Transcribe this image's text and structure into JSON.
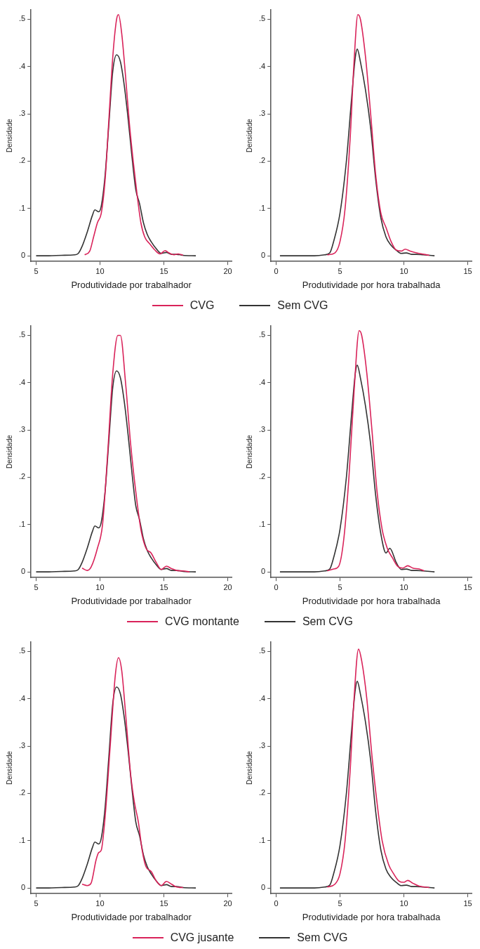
{
  "chart_data": [
    {
      "type": "line",
      "xlabel": "Produtividade por trabalhador",
      "ylabel": "Densidade",
      "xlim": [
        4.6,
        20.3
      ],
      "xticks": [
        5,
        10,
        15,
        20
      ],
      "ylim": [
        -0.012,
        0.52
      ],
      "yticks": [
        {
          "value": 0,
          "label": "0"
        },
        {
          "value": 0.1,
          "label": ".1"
        },
        {
          "value": 0.2,
          "label": ".2"
        },
        {
          "value": 0.3,
          "label": ".3"
        },
        {
          "value": 0.4,
          "label": ".4"
        },
        {
          "value": 0.5,
          "label": ".5"
        }
      ],
      "grid": false,
      "legend": "bottom",
      "series": [
        {
          "name": "CVG",
          "color": "#d9235a",
          "x": [
            8.8,
            9.2,
            9.5,
            9.8,
            10.1,
            10.4,
            10.7,
            11.0,
            11.3,
            11.45,
            11.7,
            12.0,
            12.3,
            12.6,
            12.9,
            13.2,
            13.5,
            13.9,
            14.3,
            14.7,
            15.1,
            15.4,
            15.8,
            16.1,
            16.5
          ],
          "values": [
            0.002,
            0.01,
            0.04,
            0.07,
            0.09,
            0.16,
            0.29,
            0.42,
            0.5,
            0.51,
            0.47,
            0.38,
            0.28,
            0.2,
            0.13,
            0.07,
            0.04,
            0.025,
            0.012,
            0.004,
            0.011,
            0.006,
            0.002,
            0.004,
            0.001
          ]
        },
        {
          "name": "Sem CVG",
          "color": "#333333",
          "x": [
            5,
            6,
            7,
            8,
            8.3,
            8.6,
            9,
            9.4,
            9.6,
            9.9,
            10.1,
            10.4,
            10.7,
            11.0,
            11.3,
            11.6,
            11.9,
            12.2,
            12.5,
            12.8,
            13.1,
            13.4,
            13.7,
            14.0,
            14.4,
            14.8,
            15.2,
            15.6,
            16.0,
            16.5,
            17.5
          ],
          "values": [
            0,
            0,
            0.001,
            0.002,
            0.005,
            0.02,
            0.05,
            0.085,
            0.097,
            0.093,
            0.105,
            0.17,
            0.28,
            0.39,
            0.425,
            0.41,
            0.36,
            0.29,
            0.21,
            0.14,
            0.11,
            0.07,
            0.045,
            0.03,
            0.015,
            0.005,
            0.007,
            0.003,
            0.003,
            0.001,
            0
          ]
        }
      ]
    },
    {
      "type": "line",
      "xlabel": "Produtividade por hora trabalhada",
      "ylabel": "Densidade",
      "xlim": [
        -0.4,
        15.3
      ],
      "xticks": [
        0,
        5,
        10,
        15
      ],
      "ylim": [
        -0.012,
        0.52
      ],
      "yticks": [
        {
          "value": 0,
          "label": "0"
        },
        {
          "value": 0.1,
          "label": ".1"
        },
        {
          "value": 0.2,
          "label": ".2"
        },
        {
          "value": 0.3,
          "label": ".3"
        },
        {
          "value": 0.4,
          "label": ".4"
        },
        {
          "value": 0.5,
          "label": ".5"
        }
      ],
      "grid": false,
      "series": [
        {
          "color": "#d9235a",
          "x": [
            4.0,
            4.6,
            5.0,
            5.4,
            5.8,
            6.1,
            6.4,
            6.6,
            7.0,
            7.4,
            7.8,
            8.2,
            8.6,
            9.0,
            9.4,
            9.8,
            10.1,
            10.5,
            11.0,
            11.4,
            12.0
          ],
          "values": [
            0.002,
            0.006,
            0.03,
            0.1,
            0.25,
            0.41,
            0.51,
            0.5,
            0.42,
            0.3,
            0.17,
            0.09,
            0.06,
            0.03,
            0.012,
            0.01,
            0.014,
            0.01,
            0.006,
            0.004,
            0.001
          ]
        },
        {
          "color": "#333333",
          "x": [
            0.3,
            3,
            3.8,
            4.2,
            4.5,
            5.0,
            5.5,
            5.9,
            6.2,
            6.35,
            6.6,
            7.0,
            7.4,
            7.8,
            8.2,
            8.6,
            9.0,
            9.4,
            9.8,
            10.2,
            10.6,
            11.0,
            11.5,
            12.4
          ],
          "values": [
            0,
            0,
            0.002,
            0.006,
            0.03,
            0.09,
            0.2,
            0.33,
            0.42,
            0.437,
            0.41,
            0.35,
            0.27,
            0.16,
            0.08,
            0.04,
            0.022,
            0.012,
            0.005,
            0.006,
            0.003,
            0.003,
            0.002,
            0
          ]
        }
      ]
    },
    {
      "type": "line",
      "xlabel": "Produtividade por trabalhador",
      "ylabel": "Densidade",
      "xlim": [
        4.6,
        20.3
      ],
      "xticks": [
        5,
        10,
        15,
        20
      ],
      "ylim": [
        -0.012,
        0.52
      ],
      "yticks": [
        {
          "value": 0,
          "label": "0"
        },
        {
          "value": 0.1,
          "label": ".1"
        },
        {
          "value": 0.2,
          "label": ".2"
        },
        {
          "value": 0.3,
          "label": ".3"
        },
        {
          "value": 0.4,
          "label": ".4"
        },
        {
          "value": 0.5,
          "label": ".5"
        }
      ],
      "grid": false,
      "legend": "bottom",
      "series": [
        {
          "name": "CVG montante",
          "color": "#d9235a",
          "x": [
            8.6,
            9.0,
            9.3,
            9.8,
            10.2,
            10.6,
            11.0,
            11.4,
            11.6,
            12.0,
            12.4,
            12.8,
            13.2,
            13.6,
            14.0,
            14.4,
            14.8,
            15.2,
            15.6,
            16.0,
            16.5,
            17.0
          ],
          "values": [
            0.008,
            0.003,
            0.01,
            0.05,
            0.1,
            0.25,
            0.42,
            0.5,
            0.5,
            0.4,
            0.27,
            0.17,
            0.09,
            0.05,
            0.04,
            0.02,
            0.005,
            0.012,
            0.007,
            0.003,
            0.002,
            0
          ]
        },
        {
          "name": "Sem CVG",
          "color": "#333333",
          "x": [
            5,
            6,
            7,
            8,
            8.3,
            8.6,
            9,
            9.4,
            9.6,
            9.9,
            10.1,
            10.4,
            10.7,
            11.0,
            11.3,
            11.6,
            11.9,
            12.2,
            12.5,
            12.8,
            13.1,
            13.4,
            13.7,
            14.0,
            14.4,
            14.8,
            15.2,
            15.6,
            16.0,
            16.5,
            17.5
          ],
          "values": [
            0,
            0,
            0.001,
            0.002,
            0.005,
            0.02,
            0.05,
            0.085,
            0.097,
            0.093,
            0.105,
            0.17,
            0.28,
            0.39,
            0.425,
            0.41,
            0.36,
            0.29,
            0.21,
            0.14,
            0.11,
            0.07,
            0.045,
            0.03,
            0.015,
            0.005,
            0.007,
            0.003,
            0.003,
            0.001,
            0
          ]
        }
      ]
    },
    {
      "type": "line",
      "xlabel": "Produtividade por hora trabalhada",
      "ylabel": "Densidade",
      "xlim": [
        -0.4,
        15.3
      ],
      "xticks": [
        0,
        5,
        10,
        15
      ],
      "ylim": [
        -0.012,
        0.52
      ],
      "yticks": [
        {
          "value": 0,
          "label": "0"
        },
        {
          "value": 0.1,
          "label": ".1"
        },
        {
          "value": 0.2,
          "label": ".2"
        },
        {
          "value": 0.3,
          "label": ".3"
        },
        {
          "value": 0.4,
          "label": ".4"
        },
        {
          "value": 0.5,
          "label": ".5"
        }
      ],
      "grid": false,
      "series": [
        {
          "color": "#d9235a",
          "x": [
            4.0,
            4.5,
            4.9,
            5.3,
            5.7,
            6.1,
            6.5,
            6.7,
            7.1,
            7.5,
            7.9,
            8.3,
            8.7,
            9.1,
            9.5,
            9.9,
            10.3,
            10.7,
            11.2,
            11.6
          ],
          "values": [
            0.002,
            0.006,
            0.012,
            0.07,
            0.2,
            0.38,
            0.51,
            0.5,
            0.42,
            0.3,
            0.17,
            0.09,
            0.05,
            0.03,
            0.012,
            0.008,
            0.013,
            0.008,
            0.006,
            0.002
          ]
        },
        {
          "color": "#333333",
          "x": [
            0.3,
            3,
            3.8,
            4.2,
            4.5,
            5.0,
            5.5,
            5.9,
            6.2,
            6.35,
            6.6,
            7.0,
            7.4,
            7.8,
            8.2,
            8.6,
            8.9,
            9.4,
            9.8,
            10.2,
            10.6,
            11.0,
            11.5,
            12.4
          ],
          "values": [
            0,
            0,
            0.002,
            0.006,
            0.03,
            0.09,
            0.2,
            0.33,
            0.42,
            0.437,
            0.41,
            0.35,
            0.27,
            0.16,
            0.08,
            0.04,
            0.05,
            0.02,
            0.005,
            0.006,
            0.003,
            0.003,
            0.002,
            0
          ]
        }
      ]
    },
    {
      "type": "line",
      "xlabel": "Produtividade por trabalhador",
      "ylabel": "Densidade",
      "xlim": [
        4.6,
        20.3
      ],
      "xticks": [
        5,
        10,
        15,
        20
      ],
      "ylim": [
        -0.012,
        0.52
      ],
      "yticks": [
        {
          "value": 0,
          "label": "0"
        },
        {
          "value": 0.1,
          "label": ".1"
        },
        {
          "value": 0.2,
          "label": ".2"
        },
        {
          "value": 0.3,
          "label": ".3"
        },
        {
          "value": 0.4,
          "label": ".4"
        },
        {
          "value": 0.5,
          "label": ".5"
        }
      ],
      "grid": false,
      "legend": "bottom",
      "series": [
        {
          "name": "CVG jusante",
          "color": "#d9235a",
          "x": [
            8.6,
            9.0,
            9.3,
            9.7,
            9.9,
            10.1,
            10.4,
            10.8,
            11.2,
            11.45,
            11.7,
            12.0,
            12.4,
            12.7,
            13.0,
            13.3,
            13.6,
            14.0,
            14.4,
            14.8,
            15.2,
            15.6,
            16.0,
            16.5
          ],
          "values": [
            0.008,
            0.005,
            0.01,
            0.06,
            0.075,
            0.08,
            0.15,
            0.3,
            0.45,
            0.487,
            0.46,
            0.37,
            0.24,
            0.18,
            0.14,
            0.08,
            0.045,
            0.035,
            0.015,
            0.005,
            0.014,
            0.008,
            0.002,
            0.001
          ]
        },
        {
          "name": "Sem CVG",
          "color": "#333333",
          "x": [
            5,
            6,
            7,
            8,
            8.3,
            8.6,
            9,
            9.4,
            9.6,
            9.9,
            10.1,
            10.4,
            10.7,
            11.0,
            11.3,
            11.6,
            11.9,
            12.2,
            12.5,
            12.8,
            13.1,
            13.4,
            13.7,
            14.0,
            14.4,
            14.8,
            15.2,
            15.6,
            16.0,
            16.5,
            17.5
          ],
          "values": [
            0,
            0,
            0.001,
            0.002,
            0.005,
            0.02,
            0.05,
            0.085,
            0.097,
            0.093,
            0.105,
            0.17,
            0.28,
            0.39,
            0.425,
            0.41,
            0.36,
            0.29,
            0.21,
            0.14,
            0.11,
            0.07,
            0.045,
            0.03,
            0.015,
            0.005,
            0.007,
            0.003,
            0.003,
            0.001,
            0
          ]
        }
      ]
    },
    {
      "type": "line",
      "xlabel": "Produtividade por hora trabalhada",
      "ylabel": "Densidade",
      "xlim": [
        -0.4,
        15.3
      ],
      "xticks": [
        0,
        5,
        10,
        15
      ],
      "ylim": [
        -0.012,
        0.52
      ],
      "yticks": [
        {
          "value": 0,
          "label": "0"
        },
        {
          "value": 0.1,
          "label": ".1"
        },
        {
          "value": 0.2,
          "label": ".2"
        },
        {
          "value": 0.3,
          "label": ".3"
        },
        {
          "value": 0.4,
          "label": ".4"
        },
        {
          "value": 0.5,
          "label": ".5"
        }
      ],
      "grid": false,
      "series": [
        {
          "color": "#d9235a",
          "x": [
            4.0,
            4.6,
            5.0,
            5.4,
            5.8,
            6.1,
            6.45,
            6.7,
            7.1,
            7.5,
            7.9,
            8.3,
            8.8,
            9.2,
            9.6,
            10.0,
            10.3,
            10.7,
            11.2,
            12.0
          ],
          "values": [
            0.002,
            0.008,
            0.03,
            0.1,
            0.25,
            0.4,
            0.505,
            0.48,
            0.4,
            0.28,
            0.18,
            0.1,
            0.05,
            0.03,
            0.015,
            0.012,
            0.016,
            0.01,
            0.004,
            0.001
          ]
        },
        {
          "color": "#333333",
          "x": [
            0.3,
            3,
            3.8,
            4.2,
            4.5,
            5.0,
            5.5,
            5.9,
            6.2,
            6.35,
            6.6,
            7.0,
            7.4,
            7.8,
            8.2,
            8.6,
            9.0,
            9.4,
            9.8,
            10.2,
            10.6,
            11.0,
            11.5,
            12.4
          ],
          "values": [
            0,
            0,
            0.002,
            0.006,
            0.03,
            0.09,
            0.2,
            0.33,
            0.42,
            0.437,
            0.41,
            0.35,
            0.27,
            0.16,
            0.08,
            0.04,
            0.022,
            0.012,
            0.005,
            0.006,
            0.003,
            0.003,
            0.002,
            0
          ]
        }
      ]
    }
  ]
}
